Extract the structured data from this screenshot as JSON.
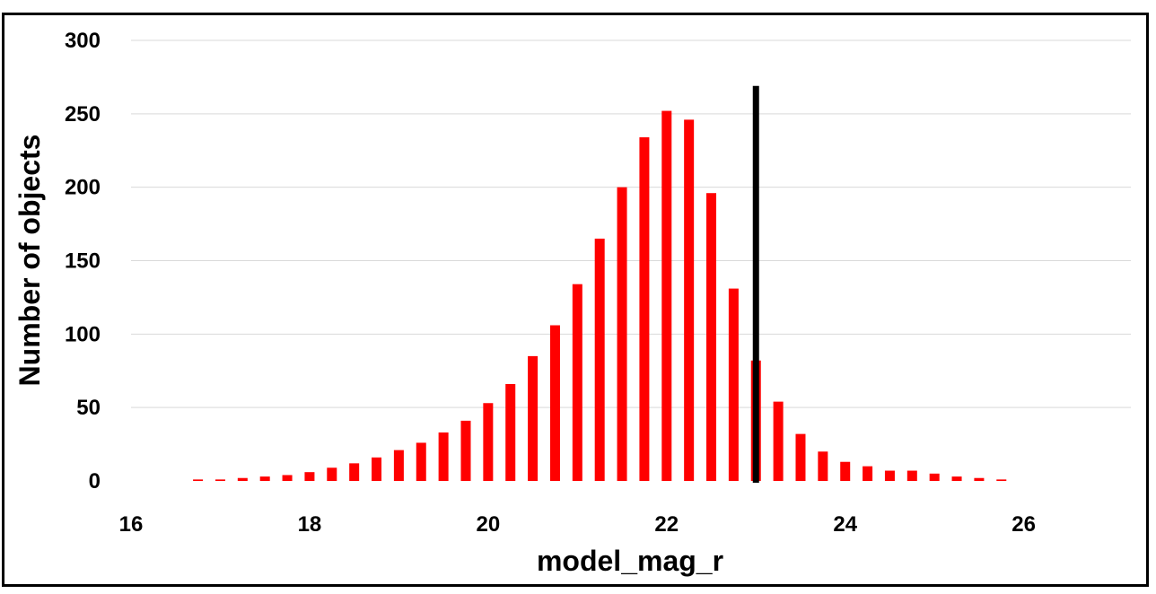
{
  "chart_data": {
    "type": "bar",
    "title": "",
    "xlabel": "model_mag_r",
    "ylabel": "Number of objects",
    "xlim": [
      16,
      27.2
    ],
    "ylim": [
      0,
      300
    ],
    "xticks": [
      16,
      18,
      20,
      22,
      24,
      26
    ],
    "yticks": [
      0,
      50,
      100,
      150,
      200,
      250,
      300
    ],
    "grid": "horizontal",
    "legend": "none",
    "bar_color": "#ff0000",
    "x": [
      16.75,
      17.0,
      17.25,
      17.5,
      17.75,
      18.0,
      18.25,
      18.5,
      18.75,
      19.0,
      19.25,
      19.5,
      19.75,
      20.0,
      20.25,
      20.5,
      20.75,
      21.0,
      21.25,
      21.5,
      21.75,
      22.0,
      22.25,
      22.5,
      22.75,
      23.0,
      23.25,
      23.5,
      23.75,
      24.0,
      24.25,
      24.5,
      24.75,
      25.0,
      25.25,
      25.5,
      25.75
    ],
    "values": [
      1,
      1,
      2,
      3,
      4,
      6,
      9,
      12,
      16,
      21,
      26,
      33,
      41,
      53,
      66,
      85,
      106,
      134,
      165,
      200,
      234,
      252,
      246,
      196,
      131,
      82,
      54,
      32,
      20,
      13,
      10,
      7,
      7,
      5,
      3,
      2,
      1
    ],
    "vertical_line": {
      "x": 23.0,
      "y_top": 269,
      "color": "#000000"
    }
  }
}
